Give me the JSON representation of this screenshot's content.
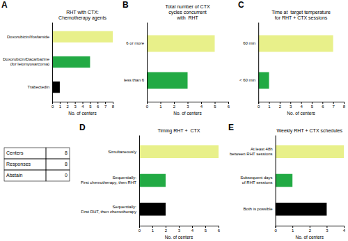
{
  "chart_data": [
    {
      "type": "bar",
      "orientation": "horizontal",
      "title": "RHT with CTX:\nChemotherapy agents",
      "annotations": [
        "A"
      ],
      "categories": [
        "Trabectedin",
        "Doxorubicin/Dacarbazine\n(for leiomyosarcoma)",
        "Doxorubicin/Ifosfamide"
      ],
      "values": [
        1,
        5,
        8
      ],
      "colors": [
        "#000000",
        "#22aa44",
        "#e8f08a"
      ],
      "xlabel": "No. of centers",
      "xlim": [
        0,
        8
      ],
      "xticks": [
        0,
        1,
        2,
        3,
        4,
        5,
        6,
        7,
        8
      ]
    },
    {
      "type": "bar",
      "orientation": "horizontal",
      "title": "Total number of CTX\ncycles concurrent\nwith  RHT",
      "annotations": [
        "B"
      ],
      "categories": [
        "less than 6",
        "6 or more"
      ],
      "values": [
        3,
        5
      ],
      "colors": [
        "#22aa44",
        "#e8f08a"
      ],
      "xlabel": "No. of centers",
      "xlim": [
        0,
        6
      ],
      "xticks": [
        0,
        1,
        2,
        3,
        4,
        5,
        6
      ]
    },
    {
      "type": "bar",
      "orientation": "horizontal",
      "title": "Time at  target temperature\nfor RHT + CTX sessions",
      "annotations": [
        "C"
      ],
      "categories": [
        "< 60 min",
        "60 min"
      ],
      "values": [
        1,
        7
      ],
      "colors": [
        "#22aa44",
        "#e8f08a"
      ],
      "xlabel": "No. of centers",
      "xlim": [
        0,
        8
      ],
      "xticks": [
        0,
        1,
        2,
        3,
        4,
        5,
        6,
        7,
        8
      ]
    },
    {
      "type": "bar",
      "orientation": "horizontal",
      "title": "Timing RHT +  CTX",
      "annotations": [
        "D"
      ],
      "categories": [
        "Sequentially:\nFirst RHT, then chemotherapy",
        "Sequentially:\nFirst chemotherapy, then RHT",
        "Simultaneously"
      ],
      "values": [
        2,
        2,
        6
      ],
      "colors": [
        "#000000",
        "#22aa44",
        "#e8f08a"
      ],
      "xlabel": "No. of centers",
      "xlim": [
        0,
        6
      ],
      "xticks": [
        0,
        1,
        2,
        3,
        4,
        5,
        6
      ]
    },
    {
      "type": "bar",
      "orientation": "horizontal",
      "title": "Weekly RHT + CTX schedules",
      "annotations": [
        "E"
      ],
      "categories": [
        "Both is possible",
        "Subsequent days\nof RHT sessions",
        "At least 48h\nbetween RHT sessions"
      ],
      "values": [
        3,
        1,
        4
      ],
      "colors": [
        "#000000",
        "#22aa44",
        "#e8f08a"
      ],
      "xlabel": "No. of centers",
      "xlim": [
        0,
        4
      ],
      "xticks": [
        0,
        1,
        2,
        3,
        4
      ]
    },
    {
      "type": "table",
      "categories": [
        "Centers",
        "Responses",
        "Abstain"
      ],
      "values": [
        8,
        8,
        0
      ]
    }
  ]
}
